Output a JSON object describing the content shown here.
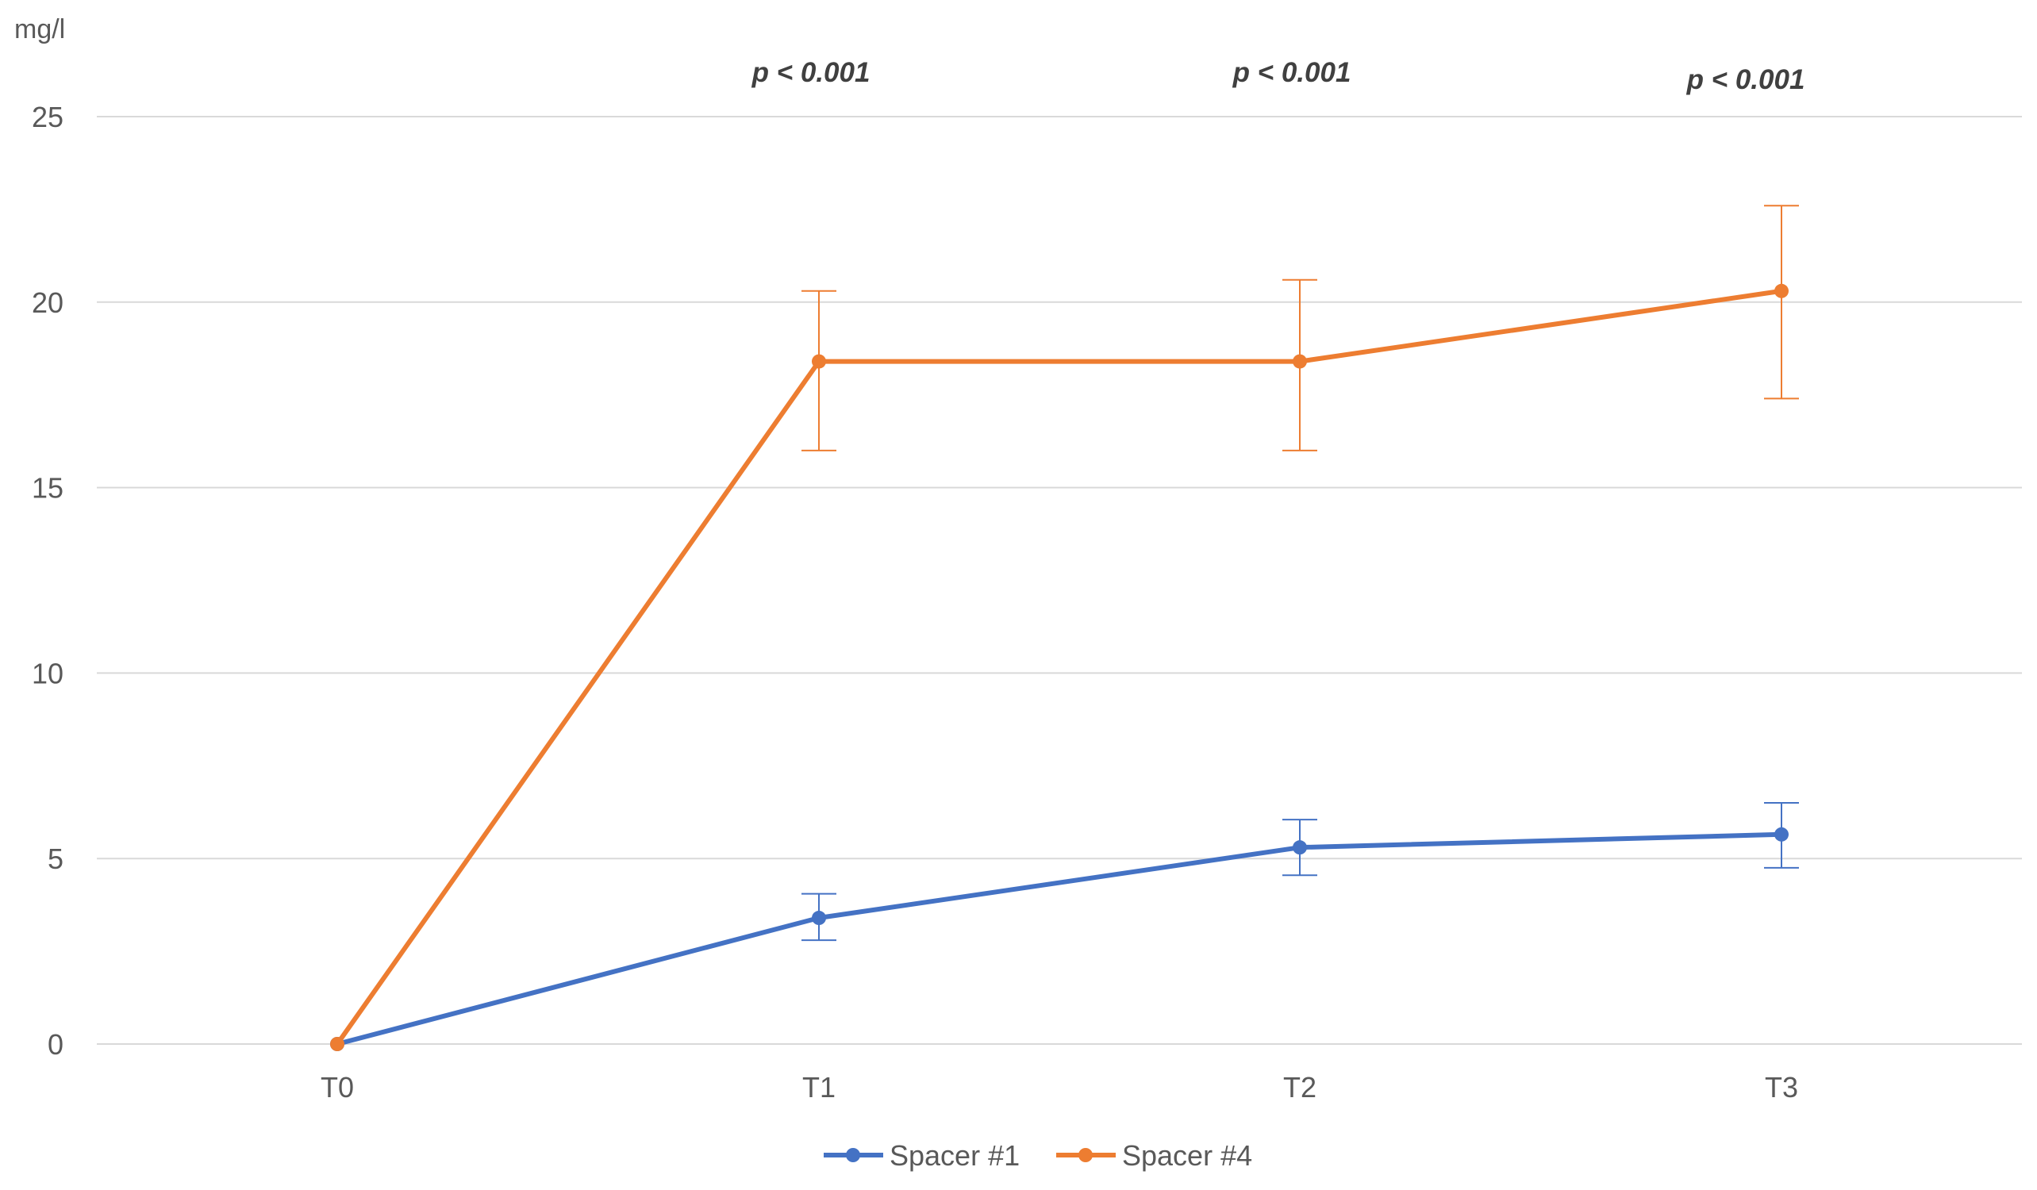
{
  "chart_data": {
    "type": "line",
    "ylabel": "mg/l",
    "ylim": [
      0,
      25
    ],
    "yticks": [
      0,
      5,
      10,
      15,
      20,
      25
    ],
    "grid": true,
    "legend_position": "bottom",
    "categories": [
      "T0",
      "T1",
      "T2",
      "T3"
    ],
    "series": [
      {
        "name": "Spacer #1",
        "color": "#4472c4",
        "values": [
          0,
          3.4,
          5.3,
          5.65
        ],
        "error_low": [
          null,
          2.8,
          4.55,
          4.75
        ],
        "error_high": [
          null,
          4.05,
          6.05,
          6.5
        ]
      },
      {
        "name": "Spacer #4",
        "color": "#ed7d31",
        "values": [
          0,
          18.4,
          18.4,
          20.3
        ],
        "error_low": [
          null,
          16.0,
          16.0,
          17.4
        ],
        "error_high": [
          null,
          20.3,
          20.6,
          22.6
        ]
      }
    ],
    "annotations": [
      {
        "text": "p < 0.001",
        "category": "T1"
      },
      {
        "text": "p < 0.001",
        "category": "T2"
      },
      {
        "text": "p < 0.001",
        "category": "T3"
      }
    ]
  }
}
